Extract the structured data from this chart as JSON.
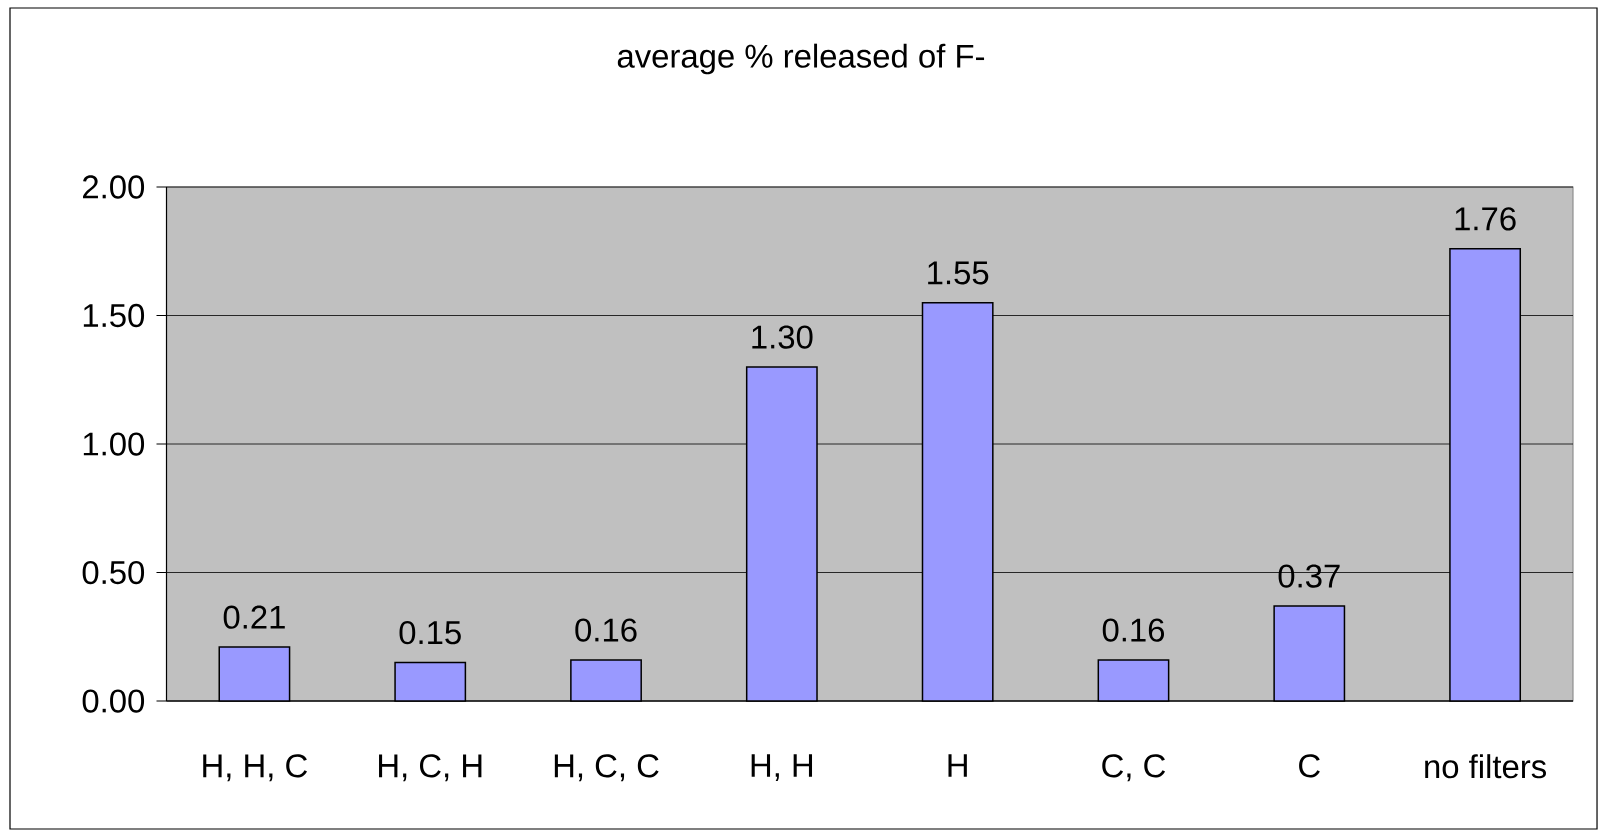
{
  "chart_data": {
    "type": "bar",
    "title": "average % released of F-",
    "categories": [
      "H, H, C",
      "H, C, H",
      "H, C, C",
      "H, H",
      "H",
      "C, C",
      "C",
      "no filters"
    ],
    "values": [
      0.21,
      0.15,
      0.16,
      1.3,
      1.55,
      0.16,
      0.37,
      1.76
    ],
    "value_labels": [
      "0.21",
      "0.15",
      "0.16",
      "1.30",
      "1.55",
      "0.16",
      "0.37",
      "1.76"
    ],
    "color": "#9999ff",
    "ylim": [
      0,
      2
    ],
    "yticks": [
      {
        "value": 0,
        "label": "0.00"
      },
      {
        "value": 0.5,
        "label": "0.50"
      },
      {
        "value": 1,
        "label": "1.00"
      },
      {
        "value": 1.5,
        "label": "1.50"
      },
      {
        "value": 2,
        "label": "2.00"
      }
    ],
    "grid": "y"
  }
}
